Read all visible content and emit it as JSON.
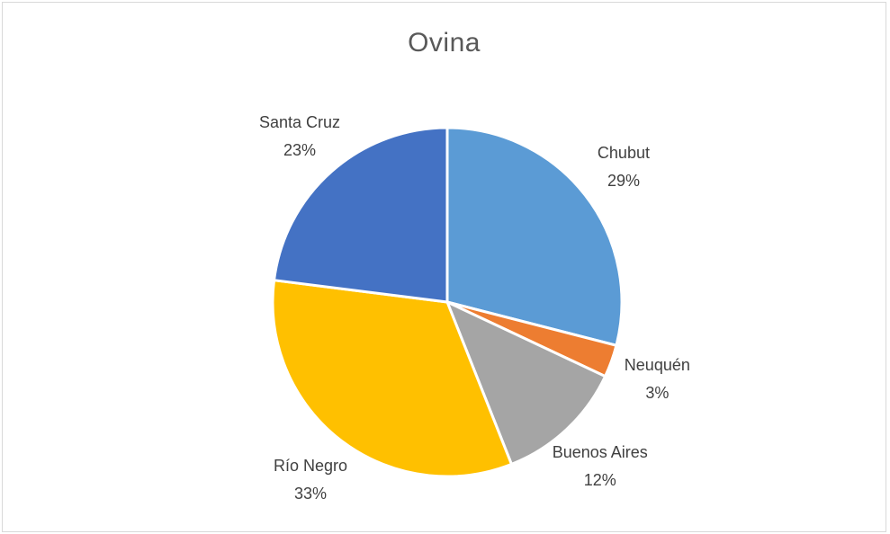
{
  "chart_data": {
    "type": "pie",
    "title": "Ovina",
    "categories": [
      "Chubut",
      "Neuquén",
      "Buenos Aires",
      "Río Negro",
      "Santa Cruz"
    ],
    "values": [
      29,
      3,
      12,
      33,
      23
    ],
    "value_labels": [
      "29%",
      "3%",
      "12%",
      "33%",
      "23%"
    ],
    "colors": [
      "#5b9bd5",
      "#ed7d31",
      "#a5a5a5",
      "#ffc000",
      "#4472c4"
    ],
    "legend": "none",
    "data_labels": "category name and percentage, outside end"
  }
}
